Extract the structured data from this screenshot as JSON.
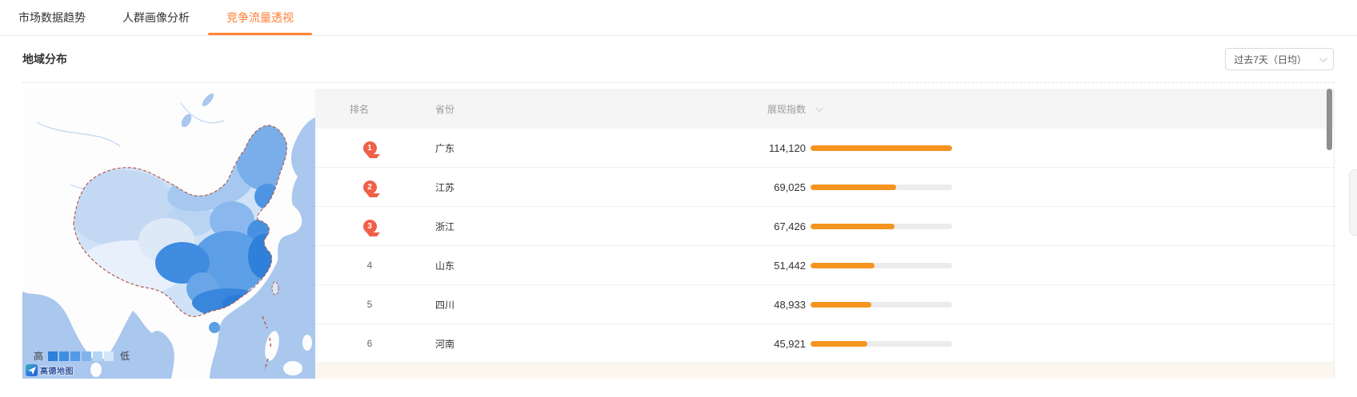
{
  "tabs": [
    {
      "label": "市场数据趋势",
      "active": false
    },
    {
      "label": "人群画像分析",
      "active": false
    },
    {
      "label": "竞争流量透视",
      "active": true
    }
  ],
  "section": {
    "title": "地域分布"
  },
  "filter": {
    "value": "过去7天（日均）",
    "icon": "chevron-down-icon"
  },
  "map": {
    "legend": {
      "high": "高",
      "low": "低",
      "colors": [
        "#2e7fd9",
        "#3f8de2",
        "#549ae6",
        "#7fb4ee",
        "#b4d4f5",
        "#d3e7fa"
      ]
    },
    "attribution": "高德地图"
  },
  "table": {
    "headers": {
      "rank": "排名",
      "province": "省份",
      "index": "展现指数"
    },
    "max_value": 114120,
    "rows": [
      {
        "rank": "1",
        "medal": true,
        "province": "广东",
        "index_display": "114,120",
        "value": 114120
      },
      {
        "rank": "2",
        "medal": true,
        "province": "江苏",
        "index_display": "69,025",
        "value": 69025
      },
      {
        "rank": "3",
        "medal": true,
        "province": "浙江",
        "index_display": "67,426",
        "value": 67426
      },
      {
        "rank": "4",
        "medal": false,
        "province": "山东",
        "index_display": "51,442",
        "value": 51442
      },
      {
        "rank": "5",
        "medal": false,
        "province": "四川",
        "index_display": "48,933",
        "value": 48933
      },
      {
        "rank": "6",
        "medal": false,
        "province": "河南",
        "index_display": "45,921",
        "value": 45921
      }
    ]
  },
  "colors": {
    "accent_orange": "#ff7e33",
    "bar_orange": "#f5941f",
    "medal_red": "#f06048",
    "map_ocean": "#aac7ee",
    "header_bg": "#f5f5f6",
    "highlight_row_bg": "#fcf7ee"
  }
}
